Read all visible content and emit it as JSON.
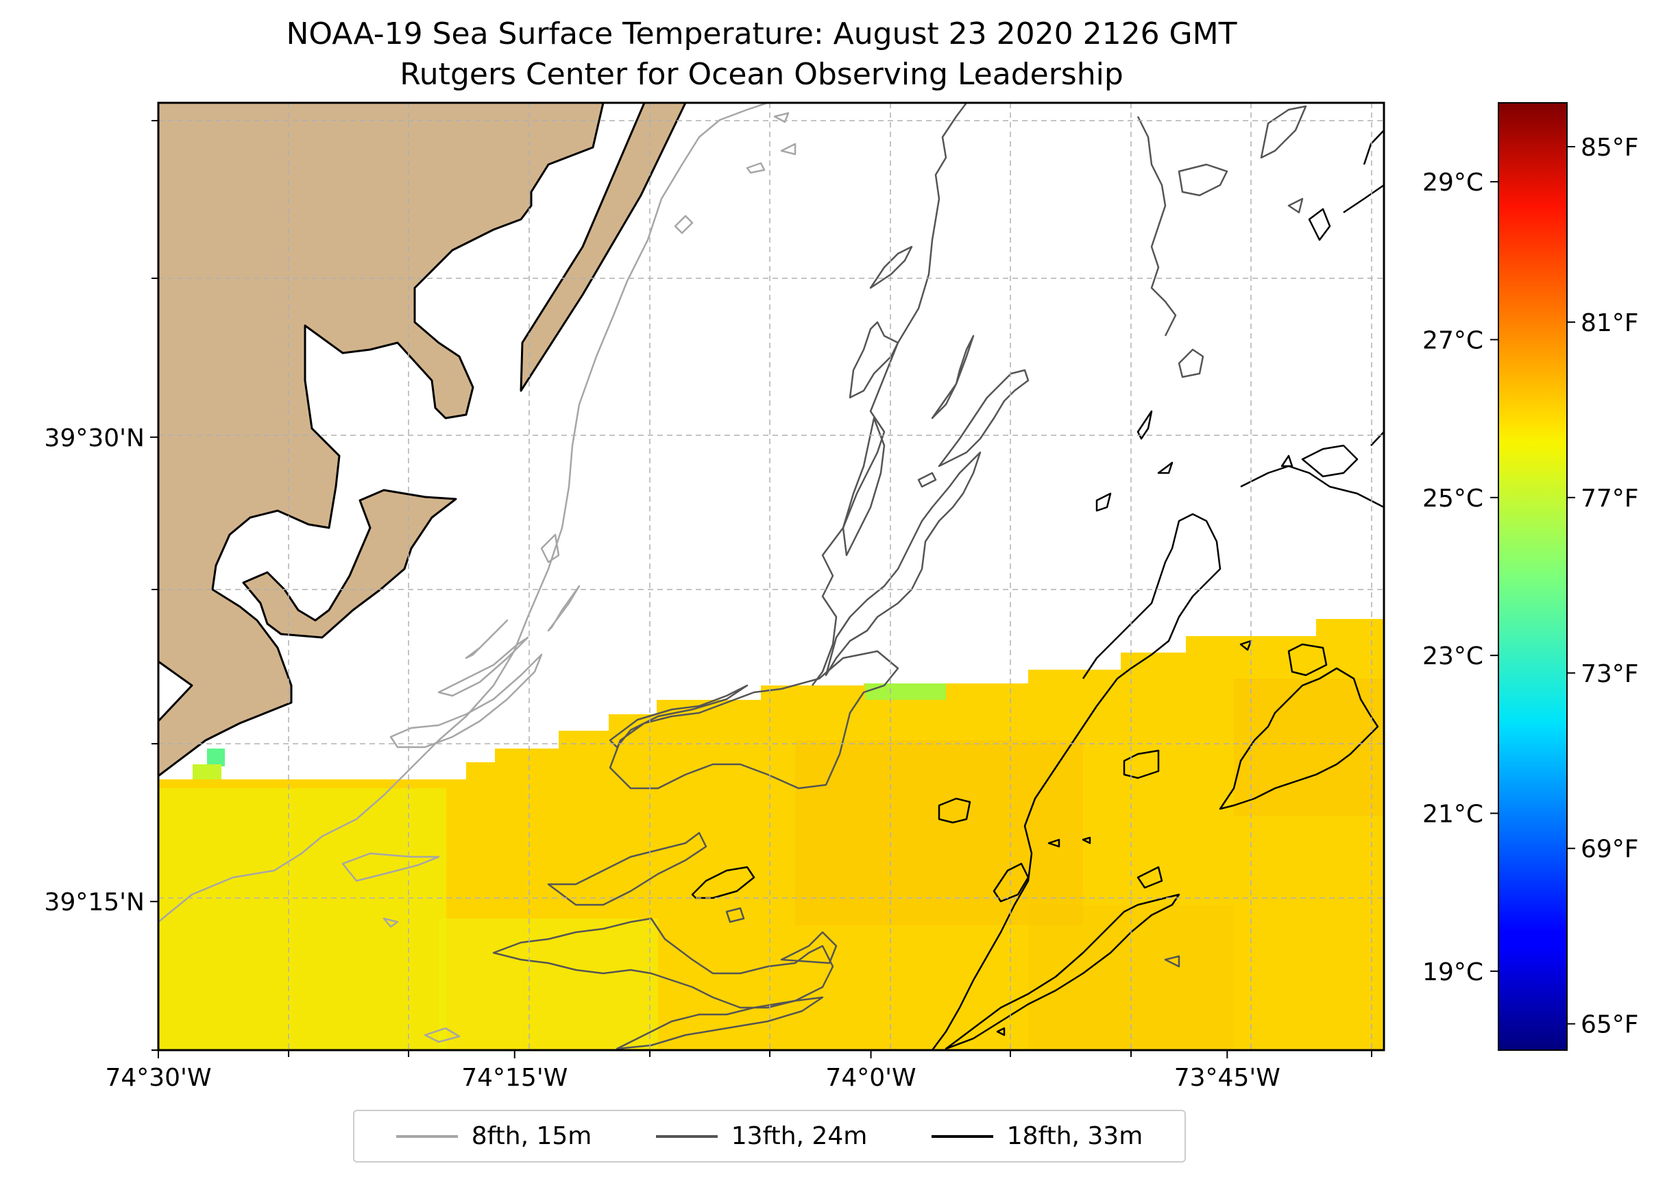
{
  "title": {
    "line1": "NOAA-19 Sea Surface Temperature: August 23 2020 2126 GMT",
    "line2": "Rutgers Center for Ocean Observing Leadership"
  },
  "x_axis": {
    "ticks": [
      {
        "value": -74.5,
        "label": "74°30'W"
      },
      {
        "value": -74.25,
        "label": "74°15'W"
      },
      {
        "value": -74.0,
        "label": "74°0'W"
      },
      {
        "value": -73.75,
        "label": "73°45'W"
      }
    ],
    "range": [
      -74.5,
      -73.64
    ]
  },
  "y_axis": {
    "ticks": [
      {
        "value": 39.5,
        "label": "39°30'N"
      },
      {
        "value": 39.25,
        "label": "39°15'N"
      }
    ],
    "range": [
      39.17,
      39.68
    ]
  },
  "colorbar": {
    "colormap": "jet",
    "celsius_range": [
      18.0,
      30.0
    ],
    "celsius_ticks": [
      {
        "value": 19,
        "label": "19°C"
      },
      {
        "value": 21,
        "label": "21°C"
      },
      {
        "value": 23,
        "label": "23°C"
      },
      {
        "value": 25,
        "label": "25°C"
      },
      {
        "value": 27,
        "label": "27°C"
      },
      {
        "value": 29,
        "label": "29°C"
      }
    ],
    "fahrenheit_ticks": [
      {
        "value": 65,
        "label": "65°F"
      },
      {
        "value": 69,
        "label": "69°F"
      },
      {
        "value": 73,
        "label": "73°F"
      },
      {
        "value": 77,
        "label": "77°F"
      },
      {
        "value": 81,
        "label": "81°F"
      },
      {
        "value": 85,
        "label": "85°F"
      }
    ]
  },
  "legend": {
    "placement": "bottom-center",
    "items": [
      {
        "label": "8fth, 15m",
        "color": "#a6a6a6"
      },
      {
        "label": "13fth, 24m",
        "color": "#555555"
      },
      {
        "label": "18fth, 33m",
        "color": "#000000"
      }
    ]
  },
  "colors": {
    "land": "#d2b48c",
    "sst_typical": "#fdd400",
    "sst_warm": "#fbc400",
    "sst_cool": "#e8f511",
    "sst_green": "#a6f53f",
    "gridline": "#b0b0b0"
  }
}
